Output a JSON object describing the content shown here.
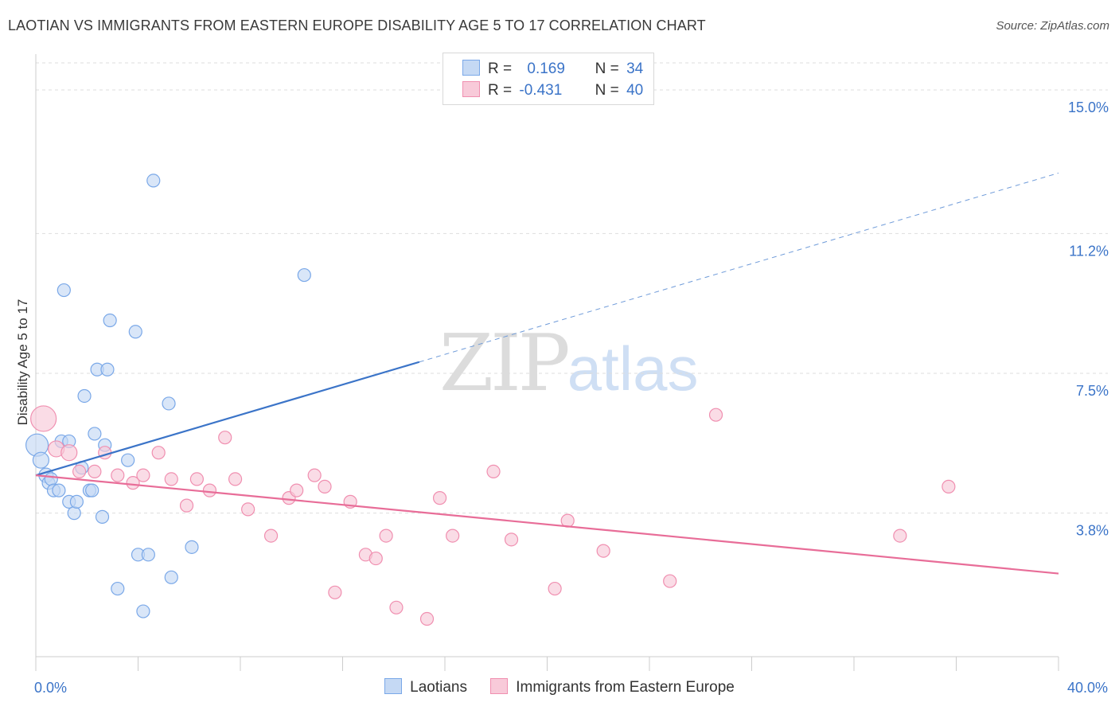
{
  "header": {
    "title": "LAOTIAN VS IMMIGRANTS FROM EASTERN EUROPE DISABILITY AGE 5 TO 17 CORRELATION CHART",
    "source": "Source: ZipAtlas.com"
  },
  "watermark": {
    "zip": "ZIP",
    "atlas": "atlas"
  },
  "legend": {
    "rows": [
      {
        "r_label": "R =",
        "r_value": "0.169",
        "n_label": "N =",
        "n_value": "34",
        "color": "#7aa8e8"
      },
      {
        "r_label": "R =",
        "r_value": "-0.431",
        "n_label": "N =",
        "n_value": "40",
        "color": "#f08fb0"
      }
    ]
  },
  "bottom_legend": {
    "items": [
      {
        "label": "Laotians",
        "color": "#7aa8e8"
      },
      {
        "label": "Immigrants from Eastern Europe",
        "color": "#f08fb0"
      }
    ]
  },
  "chart_data": {
    "type": "scatter",
    "title": "LAOTIAN VS IMMIGRANTS FROM EASTERN EUROPE DISABILITY AGE 5 TO 17 CORRELATION CHART",
    "xlabel": "",
    "ylabel": "Disability Age 5 to 17",
    "xlim": [
      0,
      40
    ],
    "ylim": [
      0,
      15.8
    ],
    "x_tick_labels": [
      {
        "value": 0,
        "label": "0.0%"
      },
      {
        "value": 40,
        "label": "40.0%"
      }
    ],
    "x_minor_ticks": [
      0,
      4,
      8,
      12,
      16,
      20,
      24,
      28,
      32,
      36,
      40
    ],
    "y_ticks": [
      {
        "value": 3.8,
        "label": "3.8%"
      },
      {
        "value": 7.5,
        "label": "7.5%"
      },
      {
        "value": 11.2,
        "label": "11.2%"
      },
      {
        "value": 15.0,
        "label": "15.0%"
      }
    ],
    "series": [
      {
        "name": "Laotians",
        "color": "#7aa8e8",
        "fill": "#c5d9f4",
        "points": [
          [
            0.05,
            5.6,
            14
          ],
          [
            0.2,
            5.2,
            10
          ],
          [
            0.4,
            4.8,
            9
          ],
          [
            0.5,
            4.6,
            8
          ],
          [
            0.6,
            4.7,
            8
          ],
          [
            0.7,
            4.4,
            8
          ],
          [
            0.9,
            4.4,
            8
          ],
          [
            1.0,
            5.7,
            8
          ],
          [
            1.1,
            9.7,
            8
          ],
          [
            1.3,
            5.7,
            8
          ],
          [
            1.3,
            4.1,
            8
          ],
          [
            1.5,
            3.8,
            8
          ],
          [
            1.6,
            4.1,
            8
          ],
          [
            1.8,
            5.0,
            8
          ],
          [
            1.9,
            6.9,
            8
          ],
          [
            2.1,
            4.4,
            8
          ],
          [
            2.2,
            4.4,
            8
          ],
          [
            2.3,
            5.9,
            8
          ],
          [
            2.4,
            7.6,
            8
          ],
          [
            2.6,
            3.7,
            8
          ],
          [
            2.7,
            5.6,
            8
          ],
          [
            2.8,
            7.6,
            8
          ],
          [
            2.9,
            8.9,
            8
          ],
          [
            3.2,
            1.8,
            8
          ],
          [
            3.6,
            5.2,
            8
          ],
          [
            3.9,
            8.6,
            8
          ],
          [
            4.0,
            2.7,
            8
          ],
          [
            4.2,
            1.2,
            8
          ],
          [
            4.4,
            2.7,
            8
          ],
          [
            4.6,
            12.6,
            8
          ],
          [
            5.2,
            6.7,
            8
          ],
          [
            5.3,
            2.1,
            8
          ],
          [
            6.1,
            2.9,
            8
          ],
          [
            10.5,
            10.1,
            8
          ]
        ]
      },
      {
        "name": "Immigrants from Eastern Europe",
        "color": "#f08fb0",
        "fill": "#f8cad9",
        "points": [
          [
            0.3,
            6.3,
            16
          ],
          [
            0.8,
            5.5,
            10
          ],
          [
            1.3,
            5.4,
            10
          ],
          [
            1.7,
            4.9,
            8
          ],
          [
            2.3,
            4.9,
            8
          ],
          [
            2.7,
            5.4,
            8
          ],
          [
            3.2,
            4.8,
            8
          ],
          [
            3.8,
            4.6,
            8
          ],
          [
            4.2,
            4.8,
            8
          ],
          [
            4.8,
            5.4,
            8
          ],
          [
            5.3,
            4.7,
            8
          ],
          [
            5.9,
            4.0,
            8
          ],
          [
            6.3,
            4.7,
            8
          ],
          [
            6.8,
            4.4,
            8
          ],
          [
            7.4,
            5.8,
            8
          ],
          [
            7.8,
            4.7,
            8
          ],
          [
            8.3,
            3.9,
            8
          ],
          [
            9.2,
            3.2,
            8
          ],
          [
            9.9,
            4.2,
            8
          ],
          [
            10.2,
            4.4,
            8
          ],
          [
            10.9,
            4.8,
            8
          ],
          [
            11.3,
            4.5,
            8
          ],
          [
            11.7,
            1.7,
            8
          ],
          [
            12.3,
            4.1,
            8
          ],
          [
            12.9,
            2.7,
            8
          ],
          [
            13.3,
            2.6,
            8
          ],
          [
            13.7,
            3.2,
            8
          ],
          [
            14.1,
            1.3,
            8
          ],
          [
            15.3,
            1.0,
            8
          ],
          [
            15.8,
            4.2,
            8
          ],
          [
            16.3,
            3.2,
            8
          ],
          [
            17.9,
            4.9,
            8
          ],
          [
            18.6,
            3.1,
            8
          ],
          [
            20.3,
            1.8,
            8
          ],
          [
            20.8,
            3.6,
            8
          ],
          [
            22.2,
            2.8,
            8
          ],
          [
            24.8,
            2.0,
            8
          ],
          [
            26.6,
            6.4,
            8
          ],
          [
            33.8,
            3.2,
            8
          ],
          [
            35.7,
            4.5,
            8
          ]
        ]
      }
    ],
    "trendlines": [
      {
        "series": "Laotians",
        "solid": [
          [
            0,
            4.8
          ],
          [
            15,
            7.8
          ]
        ],
        "dashed": [
          [
            15,
            7.8
          ],
          [
            40,
            12.8
          ]
        ]
      },
      {
        "series": "Immigrants from Eastern Europe",
        "solid": [
          [
            0,
            4.8
          ],
          [
            40,
            2.2
          ]
        ]
      }
    ]
  }
}
